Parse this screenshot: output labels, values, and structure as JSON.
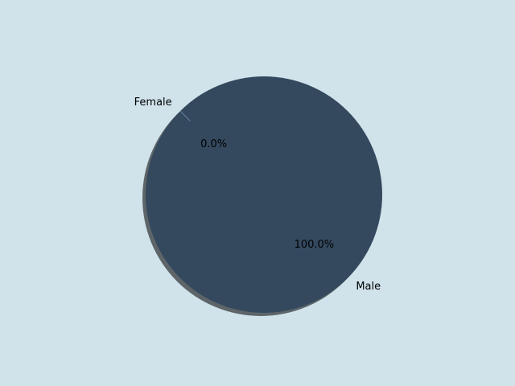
{
  "background": "#d0e3eb",
  "chart_data": {
    "type": "pie",
    "title": "",
    "slices": [
      {
        "label": "Female",
        "value": 0.0,
        "percent_label": "0.0%",
        "color": "#5c7a91"
      },
      {
        "label": "Male",
        "value": 100.0,
        "percent_label": "100.0%",
        "color": "#34495e"
      }
    ],
    "shadow": true,
    "legend": "none"
  }
}
